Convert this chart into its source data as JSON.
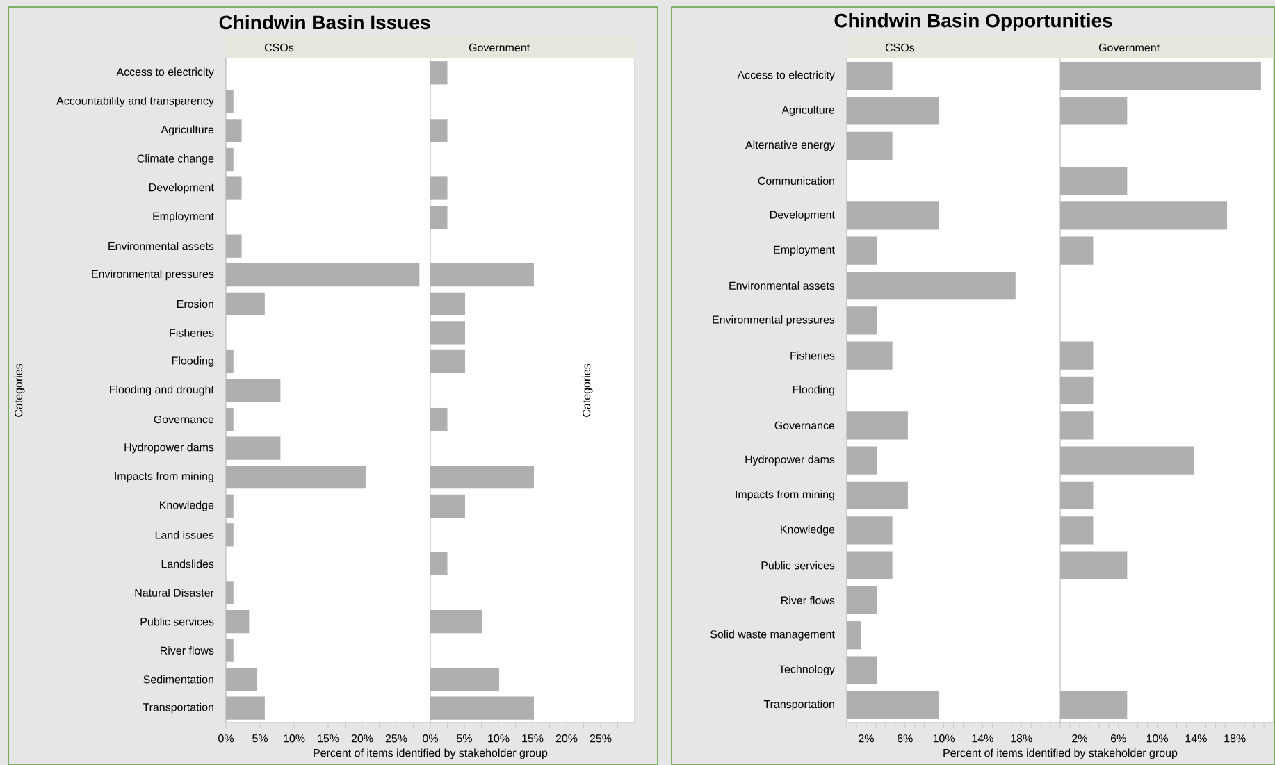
{
  "chart_data": [
    {
      "type": "bar",
      "orientation": "horizontal",
      "title": "Chindwin Basin Issues",
      "xlabel": "Percent of items identified by stakeholder group",
      "ylabel": "Categories",
      "categories": [
        "Access to electricity",
        "Accountability and transparency",
        "Agriculture",
        "Climate change",
        "Development",
        "Employment",
        "Environmental assets",
        "Environmental pressures",
        "Erosion",
        "Fisheries",
        "Flooding",
        "Flooding and drought",
        "Governance",
        "Hydropower dams",
        "Impacts from mining",
        "Knowledge",
        "Land issues",
        "Landslides",
        "Natural Disaster",
        "Public services",
        "River flows",
        "Sedimentation",
        "Transportation"
      ],
      "series": [
        {
          "name": "CSOs",
          "color": "#afafaf",
          "values": [
            null,
            1.1,
            2.3,
            1.1,
            2.3,
            null,
            2.3,
            28.4,
            5.7,
            null,
            1.1,
            8.0,
            1.1,
            8.0,
            20.5,
            1.1,
            1.1,
            null,
            1.1,
            3.4,
            1.1,
            4.5,
            5.7
          ]
        }
      ],
      "xlim": [
        0,
        30
      ],
      "xticks": [
        {
          "value": 0,
          "label": "0%"
        },
        {
          "value": 2.5,
          "label": null
        },
        {
          "value": 5,
          "label": "5%"
        },
        {
          "value": 7.5,
          "label": null
        },
        {
          "value": 10,
          "label": "10%"
        },
        {
          "value": 12.5,
          "label": null
        },
        {
          "value": 15,
          "label": "15%"
        },
        {
          "value": 17.5,
          "label": null
        },
        {
          "value": 20,
          "label": "20%"
        },
        {
          "value": 22.5,
          "label": null
        },
        {
          "value": 25,
          "label": "25%"
        },
        {
          "value": 27.5,
          "label": null
        }
      ]
    },
    {
      "type": "bar",
      "orientation": "horizontal",
      "categories": [
        null,
        null,
        null,
        null,
        null,
        null,
        null,
        null,
        null,
        null,
        null,
        null,
        null,
        null,
        null,
        null,
        null,
        null,
        null,
        null,
        null,
        null,
        null
      ],
      "series": [
        {
          "name": "Government",
          "color": "#afafaf",
          "values": [
            2.5,
            null,
            2.5,
            null,
            2.5,
            2.5,
            null,
            15.2,
            5.1,
            5.1,
            5.1,
            null,
            2.5,
            null,
            15.2,
            5.1,
            null,
            2.5,
            null,
            7.6,
            null,
            10.1,
            15.2
          ]
        }
      ],
      "xlim": [
        0,
        30
      ],
      "xticks": [
        {
          "value": 0,
          "label": "0%"
        },
        {
          "value": 2.5,
          "label": null
        },
        {
          "value": 5,
          "label": "5%"
        },
        {
          "value": 7.5,
          "label": null
        },
        {
          "value": 10,
          "label": "10%"
        },
        {
          "value": 12.5,
          "label": null
        },
        {
          "value": 15,
          "label": "15%"
        },
        {
          "value": 17.5,
          "label": null
        },
        {
          "value": 20,
          "label": "20%"
        },
        {
          "value": 22.5,
          "label": null
        },
        {
          "value": 25,
          "label": "25%"
        },
        {
          "value": 27.5,
          "label": null
        }
      ]
    },
    {
      "type": "bar",
      "orientation": "horizontal",
      "title": "Chindwin Basin Opportunities",
      "xlabel": "Percent of items identified by stakeholder group",
      "ylabel": "Categories",
      "categories": [
        "Access to electricity",
        "Agriculture",
        "Alternative energy",
        "Communication",
        "Development",
        "Employment",
        "Environmental assets",
        "Environmental pressures",
        "Fisheries",
        "Flooding",
        "Governance",
        "Hydropower dams",
        "Impacts from mining",
        "Knowledge",
        "Public services",
        "River flows",
        "Solid waste management",
        "Technology",
        "Transportation"
      ],
      "series": [
        {
          "name": "CSOs",
          "color": "#afafaf",
          "values": [
            4.7,
            9.5,
            4.7,
            null,
            9.5,
            3.1,
            17.4,
            3.1,
            4.7,
            null,
            6.3,
            3.1,
            6.3,
            4.7,
            4.7,
            3.1,
            1.5,
            3.1,
            9.5
          ]
        }
      ],
      "xlim": [
        0,
        22
      ],
      "xticks": [
        {
          "value": 0,
          "label": null
        },
        {
          "value": 1,
          "label": null
        },
        {
          "value": 2,
          "label": "2%"
        },
        {
          "value": 3,
          "label": null
        },
        {
          "value": 4,
          "label": null
        },
        {
          "value": 5,
          "label": null
        },
        {
          "value": 6,
          "label": "6%"
        },
        {
          "value": 7,
          "label": null
        },
        {
          "value": 8,
          "label": null
        },
        {
          "value": 9,
          "label": null
        },
        {
          "value": 10,
          "label": "10%"
        },
        {
          "value": 11,
          "label": null
        },
        {
          "value": 12,
          "label": null
        },
        {
          "value": 13,
          "label": null
        },
        {
          "value": 14,
          "label": "14%"
        },
        {
          "value": 15,
          "label": null
        },
        {
          "value": 16,
          "label": null
        },
        {
          "value": 17,
          "label": null
        },
        {
          "value": 18,
          "label": "18%"
        },
        {
          "value": 19,
          "label": null
        },
        {
          "value": 20,
          "label": null
        },
        {
          "value": 21,
          "label": null
        }
      ]
    },
    {
      "type": "bar",
      "orientation": "horizontal",
      "categories": [
        null,
        null,
        null,
        null,
        null,
        null,
        null,
        null,
        null,
        null,
        null,
        null,
        null,
        null,
        null,
        null,
        null,
        null,
        null
      ],
      "series": [
        {
          "name": "Government",
          "color": "#afafaf",
          "values": [
            20.7,
            6.9,
            null,
            6.9,
            17.2,
            3.4,
            null,
            null,
            3.4,
            3.4,
            3.4,
            13.8,
            3.4,
            3.4,
            6.9,
            null,
            null,
            null,
            6.9
          ]
        }
      ],
      "xlim": [
        0,
        22
      ],
      "xticks": [
        {
          "value": 0,
          "label": null
        },
        {
          "value": 1,
          "label": null
        },
        {
          "value": 2,
          "label": "2%"
        },
        {
          "value": 3,
          "label": null
        },
        {
          "value": 4,
          "label": null
        },
        {
          "value": 5,
          "label": null
        },
        {
          "value": 6,
          "label": "6%"
        },
        {
          "value": 7,
          "label": null
        },
        {
          "value": 8,
          "label": null
        },
        {
          "value": 9,
          "label": null
        },
        {
          "value": 10,
          "label": "10%"
        },
        {
          "value": 11,
          "label": null
        },
        {
          "value": 12,
          "label": null
        },
        {
          "value": 13,
          "label": null
        },
        {
          "value": 14,
          "label": "14%"
        },
        {
          "value": 15,
          "label": null
        },
        {
          "value": 16,
          "label": null
        },
        {
          "value": 17,
          "label": null
        },
        {
          "value": 18,
          "label": "18%"
        },
        {
          "value": 19,
          "label": null
        },
        {
          "value": 20,
          "label": null
        },
        {
          "value": 21,
          "label": null
        }
      ]
    }
  ]
}
